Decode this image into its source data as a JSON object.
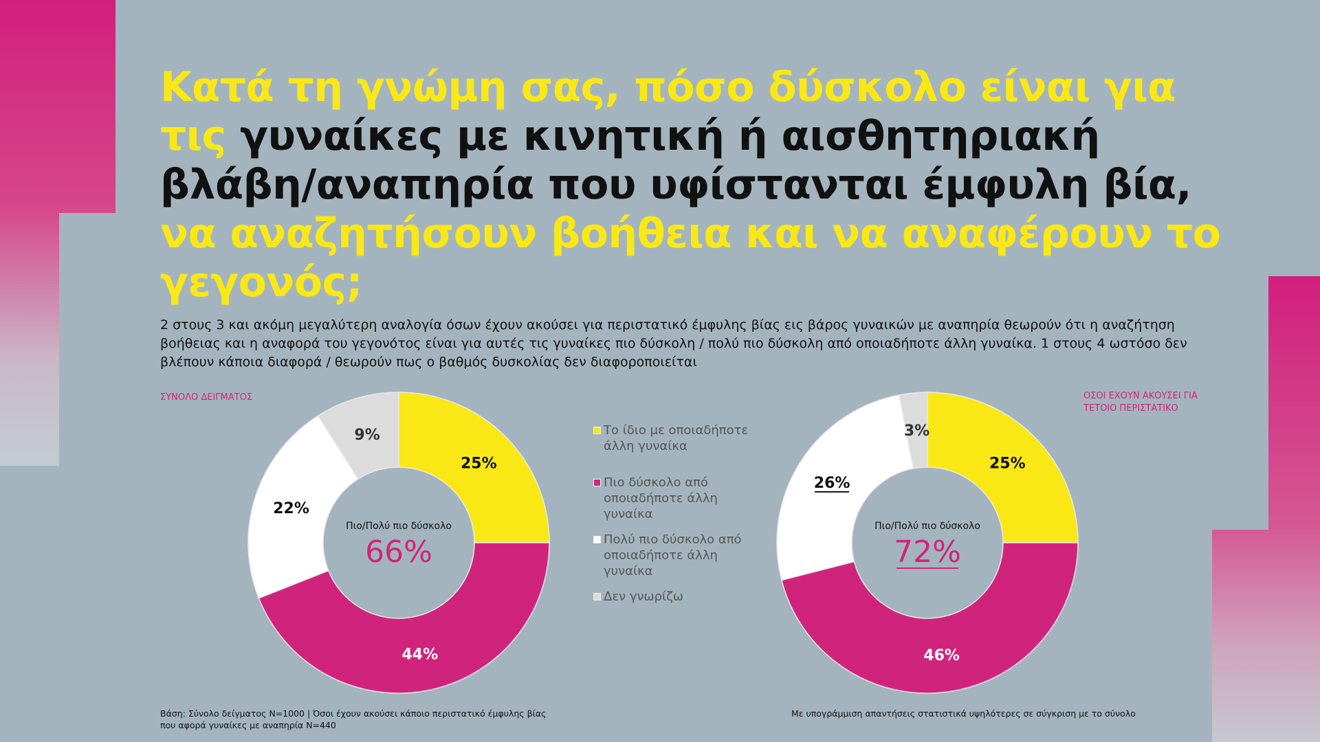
{
  "title": {
    "part1": "Κατά τη γνώμη σας, πόσο δύσκολο είναι για τις",
    "part2": " γυναίκες με κινητική ή αισθητηριακή βλάβη/αναπηρία που υφίστανται έμφυλη βία,",
    "part3": " να αναζητήσουν βοήθεια και να αναφέρουν το γεγονός;"
  },
  "subtitle": "2 στους 3 και ακόμη μεγαλύτερη αναλογία όσων έχουν ακούσει για περιστατικό έμφυλης βίας εις βάρος γυναικών με αναπηρία θεωρούν ότι η αναζήτηση βοήθειας και η αναφορά του γεγονότος είναι για αυτές τις γυναίκες πιο δύσκολη / πολύ πιο δύσκολη από οποιαδήποτε άλλη γυναίκα.  1 στους 4 ωστόσο δεν βλέπουν κάποια διαφορά / θεωρούν πως ο βαθμός δυσκολίας δεν διαφοροποιείται",
  "colors": {
    "background": "#a4b4be",
    "yellow": "#f9e816",
    "magenta": "#d0247c",
    "white": "#ffffff",
    "grey": "#dcdcdc"
  },
  "chart_data": [
    {
      "type": "pie",
      "variant": "donut",
      "group_label": "ΣΥΝΟΛΟ ΔΕΙΓΜΑΤΟΣ",
      "categories": [
        "Το ίδιο με οποιαδήποτε άλλη γυναίκα",
        "Πιο δύσκολο από οποιαδήποτε άλλη γυναίκα",
        "Πολύ πιο δύσκολο από οποιαδήποτε άλλη γυναίκα",
        "Δεν γνωρίζω"
      ],
      "values": [
        25,
        44,
        22,
        9
      ],
      "labels": [
        "25%",
        "44%",
        "22%",
        "9%"
      ],
      "center_label": "Πιο/Πολύ πιο δύσκολο",
      "center_value": "66%",
      "underlined": []
    },
    {
      "type": "pie",
      "variant": "donut",
      "group_label": "ΟΣΟΙ ΕΧΟΥΝ ΑΚΟΥΣΕΙ ΓΙΑ ΤΕΤΟΙΟ ΠΕΡΙΣΤΑΤΙΚΟ",
      "categories": [
        "Το ίδιο με οποιαδήποτε άλλη γυναίκα",
        "Πιο δύσκολο από οποιαδήποτε άλλη γυναίκα",
        "Πολύ πιο δύσκολο από οποιαδήποτε άλλη γυναίκα",
        "Δεν γνωρίζω"
      ],
      "values": [
        25,
        46,
        26,
        3
      ],
      "labels": [
        "25%",
        "46%",
        "26%",
        "3%"
      ],
      "center_label": "Πιο/Πολύ πιο δύσκολο",
      "center_value": "72%",
      "underlined": [
        "26%",
        "72%"
      ]
    }
  ],
  "legend": [
    "Το ίδιο με οποιαδήποτε άλλη γυναίκα",
    "Πιο δύσκολο από οποιαδήποτε άλλη γυναίκα",
    "Πολύ πιο δύσκολο από οποιαδήποτε άλλη γυναίκα",
    "Δεν γνωρίζω"
  ],
  "footer": {
    "left_line1": "Βάση: Σύνολο δείγματος N=1000 | Όσοι έχουν ακούσει κάποιο περιστατικό έμφυλης βίας",
    "left_line2": "που αφορά γυναίκες με αναπηρία  N=440",
    "right": "Με υπογράμμιση απαντήσεις στατιστικά υψηλότερες σε σύγκριση με το σύνολο"
  }
}
